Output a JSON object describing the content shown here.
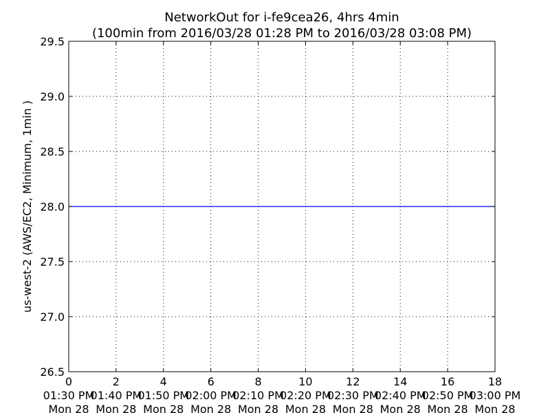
{
  "chart_data": {
    "type": "line",
    "title": "NetworkOut for i-fe9cea26, 4hrs 4min",
    "subtitle": "(100min from 2016/03/28 01:28 PM to 2016/03/28 03:08 PM)",
    "ylabel": "us-west-2 (AWS/EC2, Minimum, 1min )",
    "xlim": [
      0,
      18
    ],
    "ylim": [
      26.5,
      29.5
    ],
    "grid": true,
    "x_ticks": [
      0,
      2,
      4,
      6,
      8,
      10,
      12,
      14,
      16,
      18
    ],
    "x_tick_times": [
      "01:30 PM",
      "01:40 PM",
      "01:50 PM",
      "02:00 PM",
      "02:10 PM",
      "02:20 PM",
      "02:30 PM",
      "02:40 PM",
      "02:50 PM",
      "03:00 PM"
    ],
    "x_tick_dates": [
      "Mon 28",
      "Mon 28",
      "Mon 28",
      "Mon 28",
      "Mon 28",
      "Mon 28",
      "Mon 28",
      "Mon 28",
      "Mon 28",
      "Mon 28"
    ],
    "y_ticks": [
      "26.5",
      "27.0",
      "27.5",
      "28.0",
      "28.5",
      "29.0",
      "29.5"
    ],
    "series": [
      {
        "x": [
          0,
          18
        ],
        "y": [
          28.0,
          28.0
        ],
        "color": "#0000ff"
      }
    ]
  }
}
